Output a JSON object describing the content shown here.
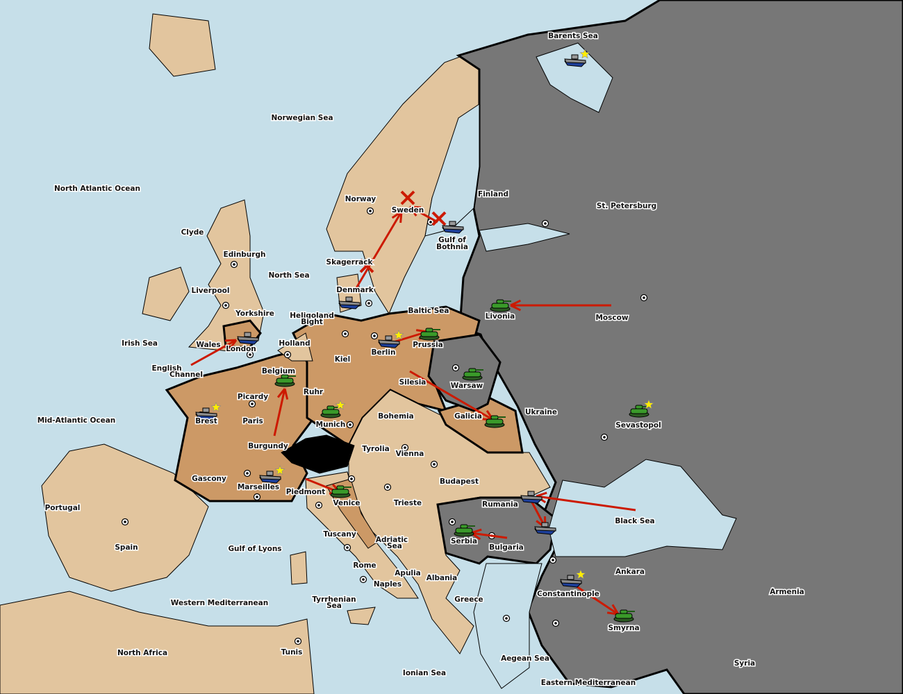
{
  "colors": {
    "sea": "#c6dfe9",
    "neutral": "#e2c59e",
    "brown_power": "#cc9966",
    "gray_power": "#777777",
    "order": "#cc1a00",
    "army": "#3a9a2a",
    "fleet": "#8a8a8a",
    "star": "#ffee00"
  },
  "labels": [
    "Barents Sea",
    "Norwegian Sea",
    "North Atlantic Ocean",
    "Finland",
    "St. Petersburg",
    "Norway",
    "Sweden",
    "Gulf of",
    "Bothnia",
    "Clyde",
    "Edinburgh",
    "Skagerrack",
    "North Sea",
    "Liverpool",
    "Denmark",
    "Yorkshire",
    "Baltic Sea",
    "Livonia",
    "Moscow",
    "Heligoland",
    "Bight",
    "Irish Sea",
    "Wales",
    "Holland",
    "Prussia",
    "London",
    "Berlin",
    "Kiel",
    "English",
    "Channel",
    "Belgium",
    "Silesia",
    "Warsaw",
    "Ruhr",
    "Picardy",
    "Ukraine",
    "Bohemia",
    "Galicia",
    "Mid-Atlantic Ocean",
    "Brest",
    "Paris",
    "Munich",
    "Sevastopol",
    "Tyrolia",
    "Burgundy",
    "Vienna",
    "Gascony",
    "Budapest",
    "Marseilles",
    "Piedmont",
    "Venice",
    "Rumania",
    "Trieste",
    "Portugal",
    "Black Sea",
    "Tuscany",
    "Adriatic",
    "Sea",
    "Serbia",
    "Bulgaria",
    "Spain",
    "Gulf of Lyons",
    "Rome",
    "Apulia",
    "Ankara",
    "Albania",
    "Naples",
    "Armenia",
    "Constantinople",
    "Greece",
    "Western Mediterranean",
    "Tyrrhenian",
    "Sea",
    "Smyrna",
    "North Africa",
    "Tunis",
    "Aegean Sea",
    "Ionian Sea",
    "Syria",
    "Eastern Mediterranean"
  ],
  "units": [
    {
      "type": "fleet",
      "province": "Barents Sea",
      "star": true
    },
    {
      "type": "fleet",
      "province": "Gulf of Bothnia",
      "star": false
    },
    {
      "type": "fleet",
      "province": "Denmark",
      "star": false
    },
    {
      "type": "army",
      "province": "Livonia",
      "star": false
    },
    {
      "type": "fleet",
      "province": "London",
      "star": false
    },
    {
      "type": "fleet",
      "province": "Berlin",
      "star": true
    },
    {
      "type": "army",
      "province": "Prussia",
      "star": false
    },
    {
      "type": "army",
      "province": "Belgium",
      "star": false
    },
    {
      "type": "fleet",
      "province": "Brest",
      "star": true
    },
    {
      "type": "army",
      "province": "Munich",
      "star": true
    },
    {
      "type": "army",
      "province": "Warsaw",
      "star": false
    },
    {
      "type": "army",
      "province": "Galicia",
      "star": false
    },
    {
      "type": "army",
      "province": "Sevastopol",
      "star": true
    },
    {
      "type": "fleet",
      "province": "Marseilles",
      "star": true
    },
    {
      "type": "army",
      "province": "Venice",
      "star": false
    },
    {
      "type": "fleet",
      "province": "Rumania",
      "star": false
    },
    {
      "type": "fleet",
      "province": "Bulgaria",
      "star": false
    },
    {
      "type": "army",
      "province": "Serbia",
      "star": false
    },
    {
      "type": "fleet",
      "province": "Constantinople",
      "star": true
    },
    {
      "type": "army",
      "province": "Smyrna",
      "star": false
    }
  ],
  "orders": [
    {
      "from": "Moscow",
      "to": "Livonia",
      "result": "ok"
    },
    {
      "from": "Denmark",
      "to": "Sweden",
      "result": "ok"
    },
    {
      "from": "Gulf of Bothnia",
      "to": "Sweden",
      "result": "ok"
    },
    {
      "from": "Wales",
      "to": "London",
      "result": "ok"
    },
    {
      "from": "Burgundy",
      "to": "Belgium",
      "result": "ok"
    },
    {
      "from": "Berlin",
      "to": "Prussia",
      "result": "ok"
    },
    {
      "from": "Silesia",
      "to": "Galicia",
      "result": "ok"
    },
    {
      "from": "Piedmont",
      "to": "Venice",
      "result": "ok"
    },
    {
      "from": "Black Sea",
      "to": "Rumania",
      "result": "ok"
    },
    {
      "from": "Rumania",
      "to": "Bulgaria",
      "result": "ok"
    },
    {
      "from": "Bulgaria",
      "to": "Serbia",
      "result": "ok"
    },
    {
      "from": "Constantinople",
      "to": "Smyrna",
      "result": "ok"
    }
  ],
  "failed_markers": [
    "Sweden",
    "Skagerrack",
    "Gulf of Bothnia"
  ]
}
